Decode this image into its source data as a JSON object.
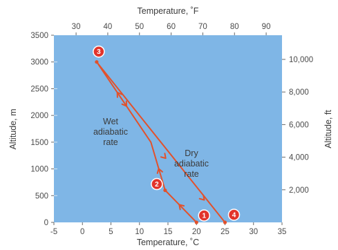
{
  "chart_data": {
    "type": "line",
    "title": "",
    "xlabel_bottom": "Temperature, ˚C",
    "xlabel_top": "Temperature, ˚F",
    "ylabel_left": "Altitude, m",
    "ylabel_right": "Altitude, ft",
    "xlim_c": [
      -5,
      35
    ],
    "ylim_m": [
      0,
      3500
    ],
    "xticks_bottom": [
      "-5",
      "0",
      "5",
      "10",
      "15",
      "20",
      "25",
      "30",
      "35"
    ],
    "xticks_top": [
      "30",
      "40",
      "50",
      "60",
      "70",
      "80",
      "90"
    ],
    "yticks_left": [
      "0",
      "500",
      "1000",
      "1500",
      "2000",
      "2500",
      "3000",
      "3500"
    ],
    "yticks_right": [
      "2,000",
      "4,000",
      "6,000",
      "8,000",
      "10,000"
    ],
    "series": [
      {
        "points": [
          {
            "x": 20,
            "y": 0
          },
          {
            "x": 14.5,
            "y": 600
          },
          {
            "x": 12,
            "y": 1500
          },
          {
            "x": 2.5,
            "y": 3000
          },
          {
            "x": 25,
            "y": 0
          }
        ]
      }
    ],
    "markers": [
      {
        "label": "1",
        "x": 20,
        "y": 0
      },
      {
        "label": "2",
        "x": 14.5,
        "y": 600
      },
      {
        "label": "3",
        "x": 2.5,
        "y": 3000
      },
      {
        "label": "4",
        "x": 25,
        "y": 0
      }
    ],
    "annotations": {
      "wet": [
        "Wet",
        "adiabatic",
        "rate"
      ],
      "dry": [
        "Dry",
        "adiabatic",
        "rate"
      ]
    },
    "colors": {
      "plot_bg": "#7fb6e6",
      "line": "#e2512b",
      "marker": "#e2342b"
    }
  }
}
